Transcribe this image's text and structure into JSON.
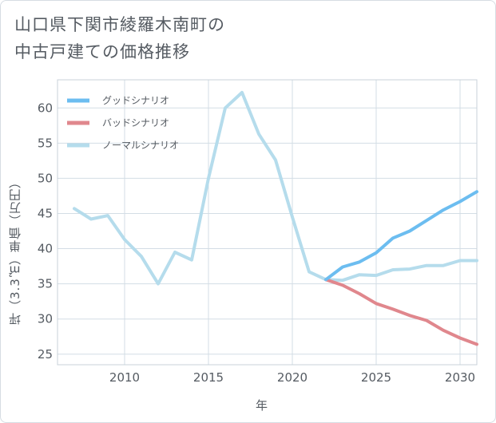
{
  "title_lines": [
    "山口県下関市綾羅木南町の",
    "中古戸建ての価格推移"
  ],
  "chart_data": {
    "type": "line",
    "title": "山口県下関市綾羅木南町の中古戸建ての価格推移",
    "xlabel": "年",
    "ylabel": "坪（3.3㎡）単価（万円）",
    "xlim": [
      2006,
      2031
    ],
    "ylim": [
      23.5,
      64
    ],
    "xticks": [
      2010,
      2015,
      2020,
      2025,
      2030
    ],
    "yticks": [
      25,
      30,
      35,
      40,
      45,
      50,
      55,
      60
    ],
    "grid": true,
    "legend_position": "top-left",
    "series": [
      {
        "name": "グッドシナリオ",
        "color": "#6cbdf0",
        "x": [
          2022,
          2023,
          2024,
          2025,
          2026,
          2027,
          2028,
          2029,
          2030,
          2031
        ],
        "y": [
          35.6,
          37.4,
          38.1,
          39.4,
          41.5,
          42.5,
          44.0,
          45.5,
          46.7,
          48.1
        ]
      },
      {
        "name": "バッドシナリオ",
        "color": "#e0878d",
        "x": [
          2022,
          2023,
          2024,
          2025,
          2026,
          2027,
          2028,
          2029,
          2030,
          2031
        ],
        "y": [
          35.6,
          34.8,
          33.6,
          32.2,
          31.4,
          30.5,
          29.8,
          28.4,
          27.3,
          26.4
        ]
      },
      {
        "name": "ノーマルシナリオ",
        "color": "#b5dcec",
        "x": [
          2007,
          2008,
          2009,
          2010,
          2011,
          2012,
          2013,
          2014,
          2015,
          2016,
          2017,
          2018,
          2019,
          2020,
          2021,
          2022,
          2023,
          2024,
          2025,
          2026,
          2027,
          2028,
          2029,
          2030,
          2031
        ],
        "y": [
          45.7,
          44.2,
          44.7,
          41.3,
          38.9,
          35.0,
          39.5,
          38.4,
          50.0,
          60.0,
          62.2,
          56.3,
          52.6,
          44.5,
          36.7,
          35.6,
          35.5,
          36.3,
          36.2,
          37.0,
          37.1,
          37.6,
          37.6,
          38.3,
          38.3
        ]
      }
    ]
  }
}
